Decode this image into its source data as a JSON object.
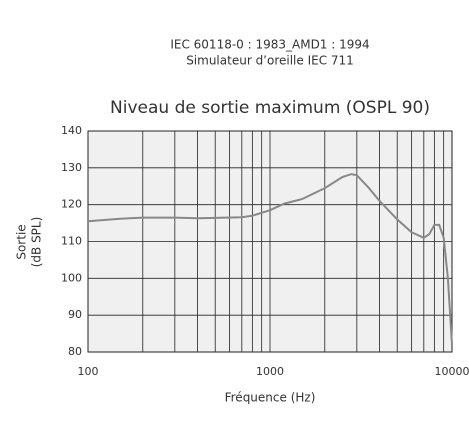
{
  "chart_data": {
    "type": "line",
    "header": [
      "IEC 60118-0 : 1983_AMD1 : 1994",
      "Simulateur d’oreille IEC 711"
    ],
    "title": "Niveau de sortie maximum (OSPL 90)",
    "ylabel": [
      "Sortie",
      "(dB SPL)"
    ],
    "xlabel": "Fréquence (Hz)",
    "x": [
      100,
      150,
      200,
      300,
      400,
      500,
      700,
      800,
      1000,
      1200,
      1500,
      2000,
      2500,
      2800,
      3000,
      3500,
      4000,
      5000,
      6000,
      7000,
      7500,
      8000,
      8500,
      9000,
      9500,
      10000
    ],
    "series": [
      {
        "name": "OSPL 90",
        "color": "#888888",
        "values": [
          115.5,
          116.2,
          116.5,
          116.5,
          116.3,
          116.4,
          116.6,
          117,
          118.5,
          120.3,
          121.5,
          124.5,
          127.5,
          128.3,
          128,
          124.5,
          121,
          116,
          112.5,
          111,
          112,
          114.5,
          114.5,
          111,
          100,
          82
        ]
      }
    ],
    "xlim": [
      100,
      10000
    ],
    "xticks": [
      100,
      1000,
      10000
    ],
    "log_x": true,
    "ylim": [
      80,
      140
    ],
    "yticks": [
      80,
      90,
      100,
      110,
      120,
      130,
      140
    ],
    "grid": true,
    "plot_background": "#f0f0f0"
  }
}
